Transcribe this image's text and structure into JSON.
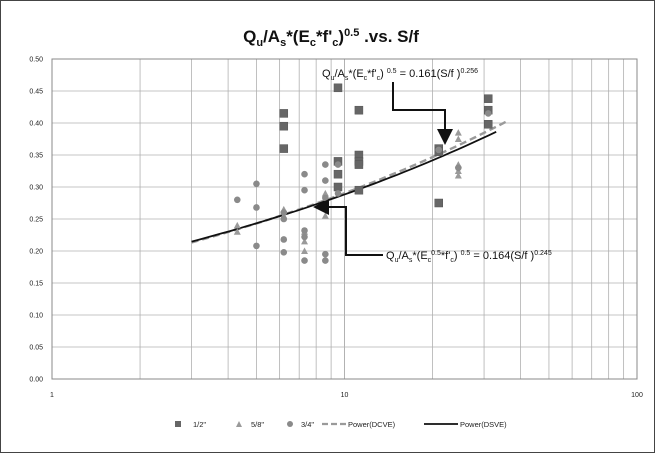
{
  "chart_data": {
    "type": "scatter",
    "title": "Qu/As*(Ec*f'c)0.5 .vs. S/f",
    "xscale": "log",
    "xlim": [
      1,
      100
    ],
    "ylim": [
      0,
      0.5
    ],
    "xticks": [
      "1",
      "10",
      "100"
    ],
    "yticks": [
      "0.00",
      "0.05",
      "0.10",
      "0.15",
      "0.20",
      "0.25",
      "0.30",
      "0.35",
      "0.40",
      "0.45",
      "0.50"
    ],
    "grid": true,
    "legend_position": "bottom",
    "series": [
      {
        "name": "1/2\"",
        "marker": "square",
        "color": "#666666",
        "points": [
          [
            6.2,
            0.415
          ],
          [
            6.2,
            0.395
          ],
          [
            6.2,
            0.36
          ],
          [
            9.5,
            0.455
          ],
          [
            9.5,
            0.34
          ],
          [
            9.5,
            0.32
          ],
          [
            9.5,
            0.3
          ],
          [
            11.2,
            0.42
          ],
          [
            11.2,
            0.35
          ],
          [
            11.2,
            0.34
          ],
          [
            11.2,
            0.335
          ],
          [
            11.2,
            0.295
          ],
          [
            21,
            0.36
          ],
          [
            21,
            0.355
          ],
          [
            21,
            0.275
          ],
          [
            31,
            0.438
          ],
          [
            31,
            0.42
          ],
          [
            31,
            0.398
          ]
        ]
      },
      {
        "name": "5/8\"",
        "marker": "triangle",
        "color": "#9a9a9a",
        "points": [
          [
            4.3,
            0.24
          ],
          [
            4.3,
            0.23
          ],
          [
            6.2,
            0.265
          ],
          [
            6.2,
            0.255
          ],
          [
            7.3,
            0.23
          ],
          [
            7.3,
            0.215
          ],
          [
            7.3,
            0.2
          ],
          [
            8.6,
            0.29
          ],
          [
            8.6,
            0.27
          ],
          [
            8.6,
            0.255
          ],
          [
            24.5,
            0.385
          ],
          [
            24.5,
            0.375
          ],
          [
            24.5,
            0.335
          ],
          [
            24.5,
            0.325
          ],
          [
            24.5,
            0.318
          ]
        ]
      },
      {
        "name": "3/4\"",
        "marker": "circle",
        "color": "#8a8a8a",
        "points": [
          [
            4.3,
            0.28
          ],
          [
            5,
            0.305
          ],
          [
            5,
            0.268
          ],
          [
            5,
            0.208
          ],
          [
            6.2,
            0.26
          ],
          [
            6.2,
            0.25
          ],
          [
            6.2,
            0.218
          ],
          [
            6.2,
            0.198
          ],
          [
            7.3,
            0.32
          ],
          [
            7.3,
            0.295
          ],
          [
            7.3,
            0.232
          ],
          [
            7.3,
            0.222
          ],
          [
            7.3,
            0.185
          ],
          [
            8.6,
            0.335
          ],
          [
            8.6,
            0.31
          ],
          [
            8.6,
            0.283
          ],
          [
            8.6,
            0.195
          ],
          [
            8.6,
            0.185
          ],
          [
            9.5,
            0.335
          ],
          [
            9.5,
            0.29
          ],
          [
            21,
            0.358
          ],
          [
            24.5,
            0.33
          ],
          [
            31,
            0.415
          ]
        ]
      }
    ],
    "fit_lines": [
      {
        "name": "Power(DCVE)",
        "coef": 0.161,
        "exp": 0.256,
        "x_range": [
          3,
          36
        ],
        "style": "dashed",
        "color": "#9a9a9a"
      },
      {
        "name": "Power(DSVE)",
        "coef": 0.164,
        "exp": 0.245,
        "x_range": [
          3,
          33
        ],
        "style": "solid",
        "color": "#111111"
      }
    ],
    "annotations": [
      {
        "id": "dcve",
        "text": "Qu/As*(Ec*f'c) 0.5 = 0.161(S/f )0.256"
      },
      {
        "id": "dsve",
        "text": "Qu/As*(Ec0.5*f'c) 0.5 = 0.164(S/f )0.245"
      }
    ]
  },
  "title_parts": {
    "t1": "Q",
    "t2": "u",
    "t3": "/A",
    "t4": "s",
    "t5": "*(E",
    "t6": "c",
    "t7": "*f'",
    "t8": "c",
    "t9": ")",
    "t10": "0.5",
    "t11": " .vs. S/f"
  },
  "ann_dcve_parts": {
    "a1": "Q",
    "a2": "u",
    "a3": "/A",
    "a4": "s",
    "a5": "*(E",
    "a6": "c",
    "a7": "*f'",
    "a8": "c",
    "a9": ") ",
    "a10": "0.5",
    "a11": " = 0.161(S/f )",
    "a12": "0.256"
  },
  "ann_dsve_parts": {
    "b1": "Q",
    "b2": "u",
    "b3": "/A",
    "b4": "s",
    "b5": "*(E",
    "b6": "c",
    "b7": "0.5",
    "b8": "*f'",
    "b9": "c",
    "b10": ") ",
    "b11": "0.5",
    "b12": " = 0.164(S/f )",
    "b13": "0.245"
  },
  "legend": {
    "items": [
      "1/2\"",
      "5/8\"",
      "3/4\"",
      "Power(DCVE)",
      "Power(DSVE)"
    ]
  }
}
